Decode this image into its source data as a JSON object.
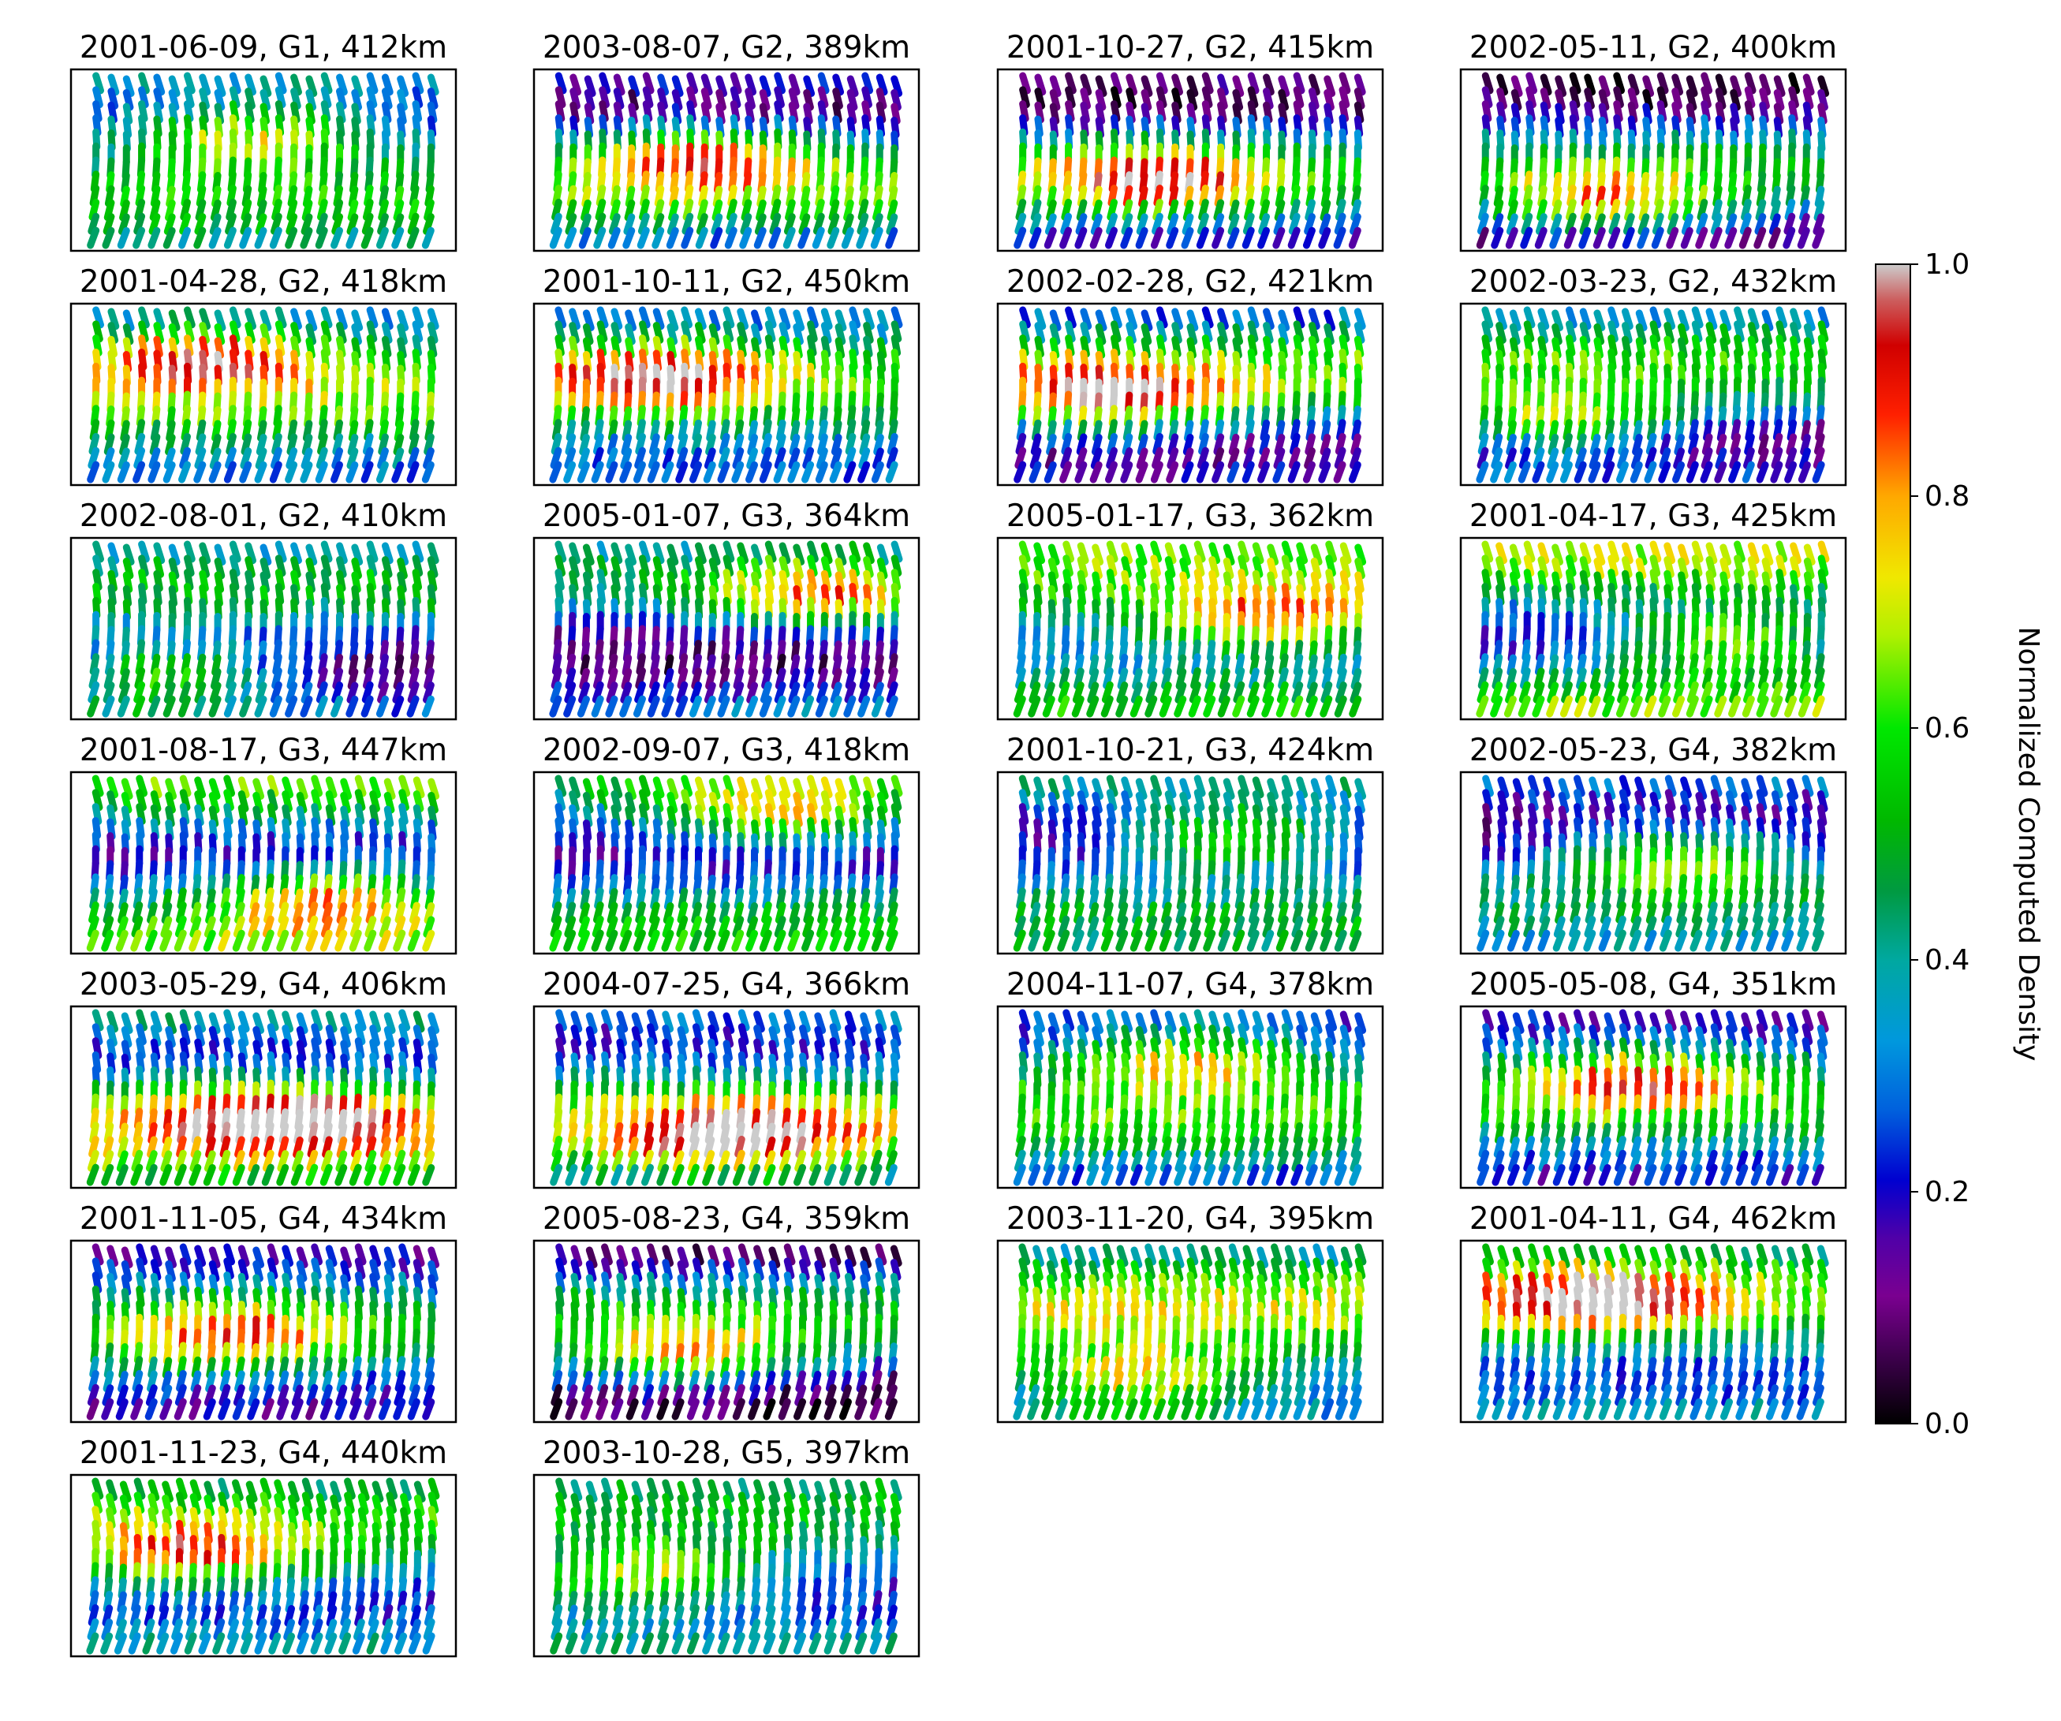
{
  "figure": {
    "colorbar": {
      "label": "Normalized Computed Density",
      "ticks": [
        "0.0",
        "0.2",
        "0.4",
        "0.6",
        "0.8",
        "1.0"
      ],
      "colormap": "nipy_spectral",
      "range": [
        0.0,
        1.0
      ]
    }
  },
  "chart_data": {
    "type": "heatmap",
    "panels": [
      {
        "title": "2001-06-09, G1, 412km"
      },
      {
        "title": "2003-08-07, G2, 389km"
      },
      {
        "title": "2001-10-27, G2, 415km"
      },
      {
        "title": "2002-05-11, G2, 400km"
      },
      {
        "title": "2001-04-28, G2, 418km"
      },
      {
        "title": "2001-10-11, G2, 450km"
      },
      {
        "title": "2002-02-28, G2, 421km"
      },
      {
        "title": "2002-03-23, G2, 432km"
      },
      {
        "title": "2002-08-01, G2, 410km"
      },
      {
        "title": "2005-01-07, G3, 364km"
      },
      {
        "title": "2005-01-17, G3, 362km"
      },
      {
        "title": "2001-04-17, G3, 425km"
      },
      {
        "title": "2001-08-17, G3, 447km"
      },
      {
        "title": "2002-09-07, G3, 418km"
      },
      {
        "title": "2001-10-21, G3, 424km"
      },
      {
        "title": "2002-05-23, G4, 382km"
      },
      {
        "title": "2003-05-29, G4, 406km"
      },
      {
        "title": "2004-07-25, G4, 366km"
      },
      {
        "title": "2004-11-07, G4, 378km"
      },
      {
        "title": "2005-05-08, G4, 351km"
      },
      {
        "title": "2001-11-05, G4, 434km"
      },
      {
        "title": "2005-08-23, G4, 359km"
      },
      {
        "title": "2003-11-20, G4, 395km"
      },
      {
        "title": "2001-04-11, G4, 462km"
      },
      {
        "title": "2001-11-23, G4, 440km"
      },
      {
        "title": "2003-10-28, G5, 397km"
      }
    ]
  }
}
